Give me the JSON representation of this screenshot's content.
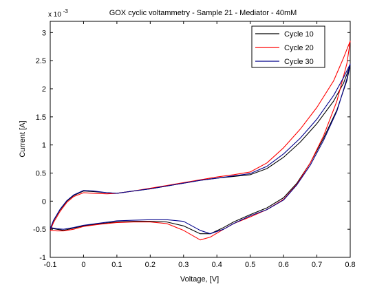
{
  "chart_data": {
    "type": "line",
    "title": "GOX cyclic voltammetry - Sample 21 - Mediator - 40mM",
    "xlabel": "Voltage, [V]",
    "ylabel": "Current [A]",
    "y_exponent_label": "x 10",
    "y_exponent_power": "-3",
    "xlim": [
      -0.1,
      0.8
    ],
    "ylim": [
      -1,
      3.2
    ],
    "x_ticks": [
      -0.1,
      0,
      0.1,
      0.2,
      0.3,
      0.4,
      0.5,
      0.6,
      0.7,
      0.8
    ],
    "x_tick_labels": [
      "-0.1",
      "0",
      "0.1",
      "0.2",
      "0.3",
      "0.4",
      "0.5",
      "0.6",
      "0.7",
      "0.8"
    ],
    "y_ticks": [
      -1,
      -0.5,
      0,
      0.5,
      1,
      1.5,
      2,
      2.5,
      3
    ],
    "y_tick_labels": [
      "-1",
      "-0.5",
      "0",
      "0.5",
      "1",
      "1.5",
      "2",
      "2.5",
      "3"
    ],
    "grid": false,
    "legend_position": "top-right",
    "series": [
      {
        "name": "Cycle 10",
        "color": "#000000",
        "x": [
          -0.1,
          -0.09,
          -0.07,
          -0.05,
          -0.03,
          0.0,
          0.03,
          0.07,
          0.1,
          0.15,
          0.2,
          0.25,
          0.3,
          0.35,
          0.4,
          0.45,
          0.5,
          0.55,
          0.6,
          0.65,
          0.7,
          0.75,
          0.78,
          0.8,
          0.79,
          0.76,
          0.72,
          0.68,
          0.64,
          0.6,
          0.55,
          0.5,
          0.45,
          0.42,
          0.38,
          0.35,
          0.3,
          0.25,
          0.2,
          0.15,
          0.1,
          0.05,
          0.0,
          -0.03,
          -0.06,
          -0.08,
          -0.1
        ],
        "y": [
          -0.5,
          -0.35,
          -0.15,
          0.0,
          0.1,
          0.18,
          0.17,
          0.15,
          0.14,
          0.18,
          0.22,
          0.27,
          0.32,
          0.37,
          0.41,
          0.44,
          0.47,
          0.58,
          0.78,
          1.05,
          1.38,
          1.78,
          2.1,
          2.42,
          2.15,
          1.62,
          1.12,
          0.68,
          0.32,
          0.06,
          -0.12,
          -0.24,
          -0.37,
          -0.47,
          -0.58,
          -0.58,
          -0.44,
          -0.37,
          -0.36,
          -0.36,
          -0.37,
          -0.4,
          -0.44,
          -0.48,
          -0.52,
          -0.5,
          -0.48
        ]
      },
      {
        "name": "Cycle 20",
        "color": "#ff0000",
        "x": [
          -0.1,
          -0.09,
          -0.07,
          -0.05,
          -0.03,
          0.0,
          0.03,
          0.07,
          0.1,
          0.15,
          0.2,
          0.25,
          0.3,
          0.35,
          0.4,
          0.45,
          0.5,
          0.55,
          0.6,
          0.65,
          0.7,
          0.75,
          0.78,
          0.8,
          0.79,
          0.76,
          0.72,
          0.68,
          0.64,
          0.6,
          0.55,
          0.5,
          0.45,
          0.42,
          0.38,
          0.35,
          0.3,
          0.25,
          0.2,
          0.15,
          0.1,
          0.05,
          0.0,
          -0.03,
          -0.06,
          -0.08,
          -0.1
        ],
        "y": [
          -0.52,
          -0.38,
          -0.18,
          -0.02,
          0.08,
          0.15,
          0.14,
          0.13,
          0.14,
          0.18,
          0.23,
          0.28,
          0.33,
          0.38,
          0.43,
          0.47,
          0.52,
          0.68,
          0.95,
          1.28,
          1.67,
          2.14,
          2.55,
          2.85,
          2.45,
          1.78,
          1.16,
          0.68,
          0.3,
          0.03,
          -0.15,
          -0.28,
          -0.4,
          -0.5,
          -0.64,
          -0.69,
          -0.52,
          -0.4,
          -0.37,
          -0.37,
          -0.38,
          -0.41,
          -0.45,
          -0.5,
          -0.53,
          -0.53,
          -0.52
        ]
      },
      {
        "name": "Cycle 30",
        "color": "#00008b",
        "x": [
          -0.1,
          -0.09,
          -0.07,
          -0.05,
          -0.03,
          0.0,
          0.03,
          0.07,
          0.1,
          0.15,
          0.2,
          0.25,
          0.3,
          0.35,
          0.4,
          0.45,
          0.5,
          0.55,
          0.6,
          0.65,
          0.7,
          0.75,
          0.78,
          0.8,
          0.79,
          0.76,
          0.72,
          0.68,
          0.64,
          0.6,
          0.55,
          0.5,
          0.45,
          0.42,
          0.38,
          0.35,
          0.3,
          0.25,
          0.2,
          0.15,
          0.1,
          0.05,
          0.0,
          -0.03,
          -0.06,
          -0.08,
          -0.1
        ],
        "y": [
          -0.49,
          -0.34,
          -0.14,
          0.01,
          0.11,
          0.19,
          0.18,
          0.15,
          0.14,
          0.18,
          0.22,
          0.27,
          0.32,
          0.37,
          0.41,
          0.45,
          0.49,
          0.62,
          0.84,
          1.12,
          1.46,
          1.88,
          2.2,
          2.44,
          2.18,
          1.6,
          1.08,
          0.64,
          0.29,
          0.02,
          -0.15,
          -0.26,
          -0.4,
          -0.5,
          -0.58,
          -0.52,
          -0.36,
          -0.33,
          -0.33,
          -0.34,
          -0.35,
          -0.39,
          -0.43,
          -0.47,
          -0.5,
          -0.49,
          -0.47
        ]
      }
    ]
  }
}
